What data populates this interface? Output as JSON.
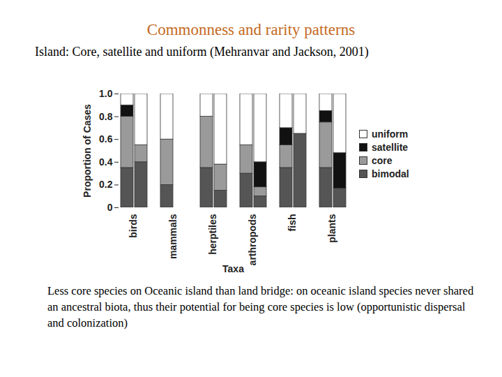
{
  "chart_data": {
    "type": "bar",
    "stacked": true,
    "title": "Commonness and rarity patterns",
    "subtitle": "Island: Core, satellite and uniform (Mehranvar and Jackson, 2001)",
    "caption": "Less core species on Oceanic island than land bridge: on oceanic island species never shared an ancestral biota, thus their potential for being core species is low (opportunistic dispersal and colonization)",
    "x_label": "Taxa",
    "y_label": "Proportion of Cases",
    "categories": [
      "birds",
      "mammals",
      "herptiles",
      "arthropods",
      "fish",
      "plants"
    ],
    "ylim": [
      0,
      1
    ],
    "yticks": [
      0,
      0.2,
      0.4,
      0.6,
      0.8,
      {
        "value": 1,
        "label": "1.0"
      }
    ],
    "legend": "right",
    "series": [
      {
        "name": "bimodal",
        "color": "#555555",
        "values": [
          [
            0.35,
            0.4
          ],
          [
            0.2,
            0
          ],
          [
            0.35,
            0.15
          ],
          [
            0.3,
            0.1
          ],
          [
            0.35,
            0.65
          ],
          [
            0.35,
            0.17
          ]
        ]
      },
      {
        "name": "core",
        "color": "#9a9a9a",
        "values": [
          [
            0.45,
            0.15
          ],
          [
            0.4,
            0
          ],
          [
            0.45,
            0.23
          ],
          [
            0.25,
            0.08
          ],
          [
            0.2,
            0
          ],
          [
            0.4,
            0
          ]
        ]
      },
      {
        "name": "satellite",
        "color": "#111111",
        "values": [
          [
            0.1,
            0
          ],
          [
            0,
            0
          ],
          [
            0,
            0
          ],
          [
            0,
            0.22
          ],
          [
            0.15,
            0
          ],
          [
            0.1,
            0.31
          ]
        ]
      },
      {
        "name": "uniform",
        "color": "#ffffff",
        "values": [
          [
            0.1,
            0.45
          ],
          [
            0.4,
            0
          ],
          [
            0.2,
            0.62
          ],
          [
            0.45,
            0.6
          ],
          [
            0.3,
            0.35
          ],
          [
            0.15,
            0.52
          ]
        ]
      }
    ]
  }
}
